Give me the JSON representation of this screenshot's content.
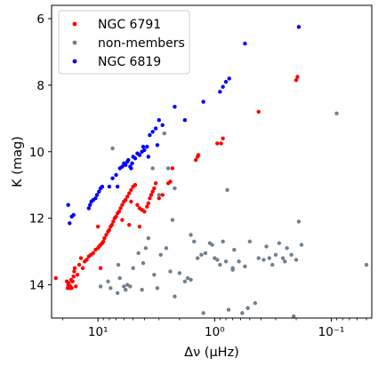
{
  "chart_data": {
    "type": "scatter",
    "xlabel": "Δν (μHz)",
    "ylabel": "K (mag)",
    "x_scale": "log",
    "x_reversed": true,
    "y_reversed": true,
    "xlim": [
      25,
      0.045
    ],
    "ylim": [
      15,
      5.6
    ],
    "x_ticks": [
      {
        "value": 10,
        "label": "10¹"
      },
      {
        "value": 1,
        "label": "10⁰"
      },
      {
        "value": 0.1,
        "label": "10⁻¹"
      }
    ],
    "y_ticks": [
      6,
      8,
      10,
      12,
      14
    ],
    "grid": false,
    "legend_position": "top-left",
    "series": [
      {
        "name": "NGC 6791",
        "color": "#ff0000",
        "points": [
          [
            23,
            13.8
          ],
          [
            18.5,
            13.9
          ],
          [
            18.2,
            14.1
          ],
          [
            18,
            14
          ],
          [
            17.8,
            13.95
          ],
          [
            17.5,
            14.1
          ],
          [
            17.2,
            14.05
          ],
          [
            17,
            13.85
          ],
          [
            16.8,
            14.1
          ],
          [
            16.5,
            13.9
          ],
          [
            16.2,
            13.75
          ],
          [
            16,
            13.6
          ],
          [
            15.8,
            13.5
          ],
          [
            15.5,
            14.05
          ],
          [
            15,
            13.7
          ],
          [
            14.5,
            13.4
          ],
          [
            14,
            13.2
          ],
          [
            13.5,
            13.5
          ],
          [
            13,
            13.3
          ],
          [
            12.5,
            13.25
          ],
          [
            12,
            13.15
          ],
          [
            11.5,
            13.1
          ],
          [
            11,
            13.05
          ],
          [
            10.5,
            12.95
          ],
          [
            10,
            12.9
          ],
          [
            9.8,
            12.85
          ],
          [
            9.5,
            12.8
          ],
          [
            9.2,
            12.75
          ],
          [
            9,
            12.7
          ],
          [
            8.8,
            12.6
          ],
          [
            8.5,
            12.5
          ],
          [
            8.2,
            12.4
          ],
          [
            8,
            12.35
          ],
          [
            7.8,
            12.25
          ],
          [
            7.6,
            12.2
          ],
          [
            7.4,
            12.1
          ],
          [
            7.2,
            12
          ],
          [
            7,
            11.95
          ],
          [
            6.8,
            11.85
          ],
          [
            6.6,
            11.8
          ],
          [
            6.4,
            11.7
          ],
          [
            6.2,
            11.6
          ],
          [
            6,
            11.5
          ],
          [
            5.8,
            11.45
          ],
          [
            5.6,
            11.35
          ],
          [
            5.4,
            11.25
          ],
          [
            5.2,
            11.15
          ],
          [
            5,
            11.05
          ],
          [
            4.8,
            11
          ],
          [
            4.6,
            11.6
          ],
          [
            4.4,
            11.7
          ],
          [
            4.2,
            11.75
          ],
          [
            4,
            11.8
          ],
          [
            3.8,
            11.65
          ],
          [
            3.7,
            11.55
          ],
          [
            3.6,
            11.4
          ],
          [
            3.5,
            11.3
          ],
          [
            3.4,
            11.2
          ],
          [
            3.3,
            11.1
          ],
          [
            3.2,
            10.95
          ],
          [
            3,
            11.4
          ],
          [
            2.8,
            11.3
          ],
          [
            2.5,
            10.95
          ],
          [
            2.4,
            10.9
          ],
          [
            2.3,
            10.5
          ],
          [
            1.45,
            10.25
          ],
          [
            1.4,
            10.15
          ],
          [
            1.38,
            10.1
          ],
          [
            0.95,
            9.75
          ],
          [
            0.88,
            9.75
          ],
          [
            0.85,
            9.6
          ],
          [
            0.42,
            8.8
          ],
          [
            0.2,
            7.85
          ],
          [
            0.195,
            7.75
          ],
          [
            10,
            12.25
          ],
          [
            9.5,
            13.5
          ],
          [
            5.2,
            11.5
          ],
          [
            4.4,
            12.25
          ],
          [
            6.2,
            12.05
          ],
          [
            5.4,
            12.2
          ]
        ]
      },
      {
        "name": "non-members",
        "color": "#708090",
        "points": [
          [
            7.5,
            9.9
          ],
          [
            6.7,
            13.4
          ],
          [
            6.5,
            13.8
          ],
          [
            6,
            14.05
          ],
          [
            5.8,
            14.15
          ],
          [
            5.6,
            14
          ],
          [
            5.3,
            14.05
          ],
          [
            5,
            13.5
          ],
          [
            4.5,
            13.05
          ],
          [
            4.2,
            14.15
          ],
          [
            4.1,
            13.35
          ],
          [
            3.9,
            12.9
          ],
          [
            3.7,
            12.6
          ],
          [
            3.3,
            13.7
          ],
          [
            3.1,
            14.1
          ],
          [
            2.9,
            13.1
          ],
          [
            2.6,
            12.9
          ],
          [
            2.4,
            13.6
          ],
          [
            2.2,
            14.35
          ],
          [
            2,
            13.65
          ],
          [
            1.8,
            13.9
          ],
          [
            1.7,
            13.8
          ],
          [
            1.6,
            12.5
          ],
          [
            1.5,
            12.7
          ],
          [
            1.4,
            13.2
          ],
          [
            1.3,
            13.1
          ],
          [
            1.25,
            14.85
          ],
          [
            1.2,
            13.05
          ],
          [
            1.1,
            12.75
          ],
          [
            1.05,
            12.8
          ],
          [
            1,
            13.2
          ],
          [
            0.95,
            13.25
          ],
          [
            0.9,
            13.4
          ],
          [
            0.85,
            12.7
          ],
          [
            0.8,
            13.3
          ],
          [
            0.78,
            11.15
          ],
          [
            0.76,
            14.75
          ],
          [
            0.7,
            13.55
          ],
          [
            0.68,
            12.95
          ],
          [
            0.62,
            13.3
          ],
          [
            0.55,
            13.45
          ],
          [
            0.52,
            14.7
          ],
          [
            0.5,
            12.7
          ],
          [
            0.45,
            14.55
          ],
          [
            0.42,
            13.2
          ],
          [
            0.38,
            13.25
          ],
          [
            0.36,
            12.85
          ],
          [
            0.34,
            13.2
          ],
          [
            0.32,
            13.4
          ],
          [
            0.3,
            13.1
          ],
          [
            0.28,
            12.75
          ],
          [
            0.26,
            13.2
          ],
          [
            0.25,
            13.3
          ],
          [
            0.24,
            12.9
          ],
          [
            0.22,
            13.1
          ],
          [
            0.21,
            14.95
          ],
          [
            0.2,
            13.25
          ],
          [
            0.19,
            12.1
          ],
          [
            0.18,
            12.8
          ],
          [
            0.09,
            8.85
          ],
          [
            0.05,
            13.4
          ],
          [
            3.4,
            10.5
          ],
          [
            3.0,
            11.3
          ],
          [
            2.7,
            9.45
          ],
          [
            2.5,
            10.5
          ],
          [
            2.3,
            12.05
          ],
          [
            2.2,
            11.1
          ],
          [
            9.5,
            14.05
          ],
          [
            8.2,
            13.9
          ],
          [
            7.8,
            14.1
          ],
          [
            6.8,
            14.25
          ],
          [
            0.58,
            14.85
          ],
          [
            1.6,
            13.85
          ],
          [
            0.7,
            13.5
          ],
          [
            0.52,
            14.7
          ]
        ]
      },
      {
        "name": "NGC 6819",
        "color": "#0000ff",
        "points": [
          [
            18,
            11.6
          ],
          [
            17.5,
            12.15
          ],
          [
            16.8,
            11.95
          ],
          [
            16.2,
            11.9
          ],
          [
            12,
            11.7
          ],
          [
            11.7,
            11.6
          ],
          [
            11.4,
            11.5
          ],
          [
            11,
            11.45
          ],
          [
            10.5,
            11.4
          ],
          [
            10.2,
            11.3
          ],
          [
            9.8,
            11.2
          ],
          [
            9.5,
            11.1
          ],
          [
            9.2,
            11.05
          ],
          [
            8,
            11.05
          ],
          [
            7.5,
            10.8
          ],
          [
            7,
            10.7
          ],
          [
            6.5,
            10.5
          ],
          [
            6.2,
            10.45
          ],
          [
            6,
            10.35
          ],
          [
            5.8,
            10.4
          ],
          [
            5.6,
            10.3
          ],
          [
            5.5,
            10.25
          ],
          [
            5.3,
            10.45
          ],
          [
            5.1,
            10.35
          ],
          [
            5,
            10.15
          ],
          [
            4.8,
            10.2
          ],
          [
            4.6,
            10.05
          ],
          [
            4.4,
            10.1
          ],
          [
            4.2,
            10
          ],
          [
            4,
            9.95
          ],
          [
            3.8,
            9.85
          ],
          [
            3.7,
            10.15
          ],
          [
            3.6,
            9.5
          ],
          [
            3.4,
            9.4
          ],
          [
            3.2,
            9.3
          ],
          [
            3.1,
            9.8
          ],
          [
            3,
            9.05
          ],
          [
            2.8,
            9.2
          ],
          [
            2.2,
            8.65
          ],
          [
            1.8,
            9.05
          ],
          [
            1.25,
            8.5
          ],
          [
            0.9,
            8.2
          ],
          [
            0.85,
            8.05
          ],
          [
            0.8,
            7.9
          ],
          [
            0.75,
            7.8
          ],
          [
            0.55,
            6.75
          ],
          [
            0.19,
            6.25
          ],
          [
            6.8,
            11.05
          ],
          [
            5.2,
            10.5
          ],
          [
            4.1,
            9.85
          ]
        ]
      }
    ]
  }
}
